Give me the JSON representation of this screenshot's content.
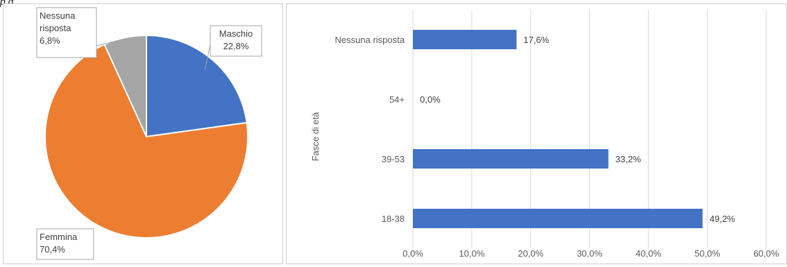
{
  "caption": "p g",
  "chart_data": [
    {
      "type": "pie",
      "slices": [
        {
          "label": "Maschio",
          "value": 22.8,
          "value_label": "22,8%",
          "color": "#4472C4"
        },
        {
          "label": "Femmina",
          "value": 70.4,
          "value_label": "70,4%",
          "color": "#ED7D31"
        },
        {
          "label_lines": [
            "Nessuna",
            "risposta"
          ],
          "value": 6.8,
          "value_label": "6,8%",
          "color": "#A5A5A5"
        }
      ]
    },
    {
      "type": "bar",
      "orientation": "horizontal",
      "ylabel": "Fasce di età",
      "categories": [
        "Nessuna risposta",
        "54+",
        "39-53",
        "18-38"
      ],
      "values": [
        17.6,
        0.0,
        33.2,
        49.2
      ],
      "value_labels": [
        "17,6%",
        "0,0%",
        "33,2%",
        "49,2%"
      ],
      "xlim": [
        0,
        60
      ],
      "xticks": [
        "0,0%",
        "10,0%",
        "20,0%",
        "30,0%",
        "40,0%",
        "50,0%",
        "60,0%"
      ],
      "grid": true,
      "color": "#4472C4"
    }
  ]
}
